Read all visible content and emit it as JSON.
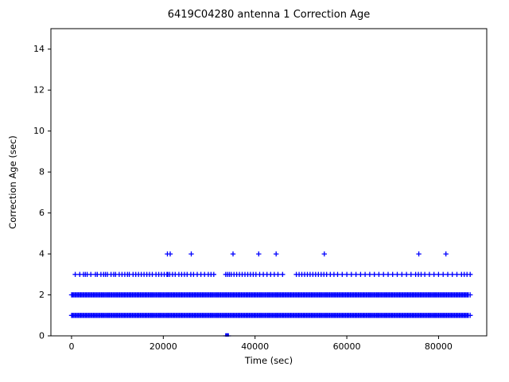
{
  "chart_data": {
    "type": "scatter",
    "title": "6419C04280 antenna 1 Correction Age",
    "xlabel": "Time (sec)",
    "ylabel": "Correction Age (sec)",
    "xlim": [
      -4500,
      90500
    ],
    "ylim": [
      0,
      15
    ],
    "xticks": [
      0,
      20000,
      40000,
      60000,
      80000
    ],
    "yticks": [
      0,
      2,
      4,
      6,
      8,
      10,
      12,
      14
    ],
    "grid": false,
    "legend": "none",
    "marker": "plus",
    "color": "#0000ff",
    "series": [
      {
        "name": "correction-age-1sec",
        "y": 1,
        "band": true,
        "x_range": [
          0,
          86500
        ],
        "step": 250,
        "extra_points": [
          86900
        ]
      },
      {
        "name": "correction-age-2sec",
        "y": 2,
        "band": true,
        "x_range": [
          0,
          86500
        ],
        "step": 250,
        "extra_points": [
          86900
        ]
      },
      {
        "name": "correction-age-3sec",
        "y": 3,
        "points": [
          800,
          1800,
          2600,
          3000,
          3400,
          4200,
          5200,
          5600,
          6400,
          7000,
          7400,
          7800,
          8600,
          9200,
          9600,
          10400,
          11000,
          11600,
          12200,
          12600,
          13400,
          14000,
          14600,
          15200,
          15800,
          16400,
          17000,
          17600,
          18400,
          19000,
          19600,
          20200,
          20800,
          21000,
          21400,
          22000,
          22600,
          23400,
          24000,
          24600,
          25200,
          26000,
          26600,
          27400,
          28200,
          29000,
          29800,
          30400,
          31000,
          33600,
          34000,
          34400,
          34800,
          35400,
          36000,
          36600,
          37200,
          37800,
          38400,
          39000,
          39600,
          40200,
          41000,
          41800,
          42600,
          43400,
          44200,
          45000,
          46000,
          49000,
          49600,
          50200,
          50800,
          51400,
          52000,
          52600,
          53200,
          53800,
          54400,
          55000,
          55600,
          56400,
          57200,
          58000,
          59000,
          60000,
          61000,
          62000,
          63000,
          64000,
          65000,
          66000,
          67000,
          68000,
          69000,
          70000,
          71000,
          72000,
          73000,
          74000,
          75000,
          75600,
          76200,
          77000,
          78000,
          79000,
          80000,
          81000,
          82000,
          83000,
          84000,
          85000,
          85600,
          86200,
          86900
        ]
      },
      {
        "name": "correction-age-4sec",
        "y": 4,
        "points": [
          20900,
          21500,
          26100,
          35200,
          40800,
          44600,
          55100,
          75700,
          81600
        ]
      },
      {
        "name": "correction-age-0sec",
        "y": 0,
        "points": [
          33600,
          33800,
          34000,
          34200
        ]
      }
    ]
  }
}
